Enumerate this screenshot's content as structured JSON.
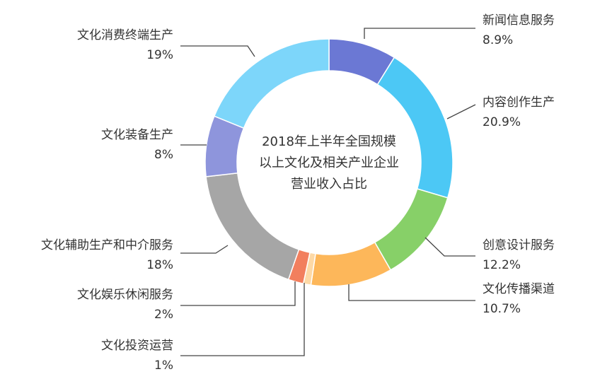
{
  "chart_data": {
    "type": "pie",
    "donut": true,
    "center_title": [
      "2018年上半年全国规模",
      "以上文化及相关产业企业",
      "营业收入占比"
    ],
    "slices": [
      {
        "label": "新闻信息服务",
        "value_text": "8.9%",
        "value": 8.9,
        "color": "#6B78D4"
      },
      {
        "label": "内容创作生产",
        "value_text": "20.9%",
        "value": 20.9,
        "color": "#4CC8F5"
      },
      {
        "label": "创意设计服务",
        "value_text": "12.2%",
        "value": 12.2,
        "color": "#87D068"
      },
      {
        "label": "文化传播渠道",
        "value_text": "10.7%",
        "value": 10.7,
        "color": "#FDB75A"
      },
      {
        "label": "文化投资运营",
        "value_text": "1%",
        "value": 1,
        "color": "#FDD9A6"
      },
      {
        "label": "文化娱乐休闲服务",
        "value_text": "2%",
        "value": 2,
        "color": "#F27F5E"
      },
      {
        "label": "文化辅助生产和中介服务",
        "value_text": "18%",
        "value": 18,
        "color": "#A6A6A6"
      },
      {
        "label": "文化装备生产",
        "value_text": "8%",
        "value": 8,
        "color": "#8E95DC"
      },
      {
        "label": "文化消费终端生产",
        "value_text": "19%",
        "value": 19,
        "color": "#7DD6FA"
      }
    ]
  }
}
